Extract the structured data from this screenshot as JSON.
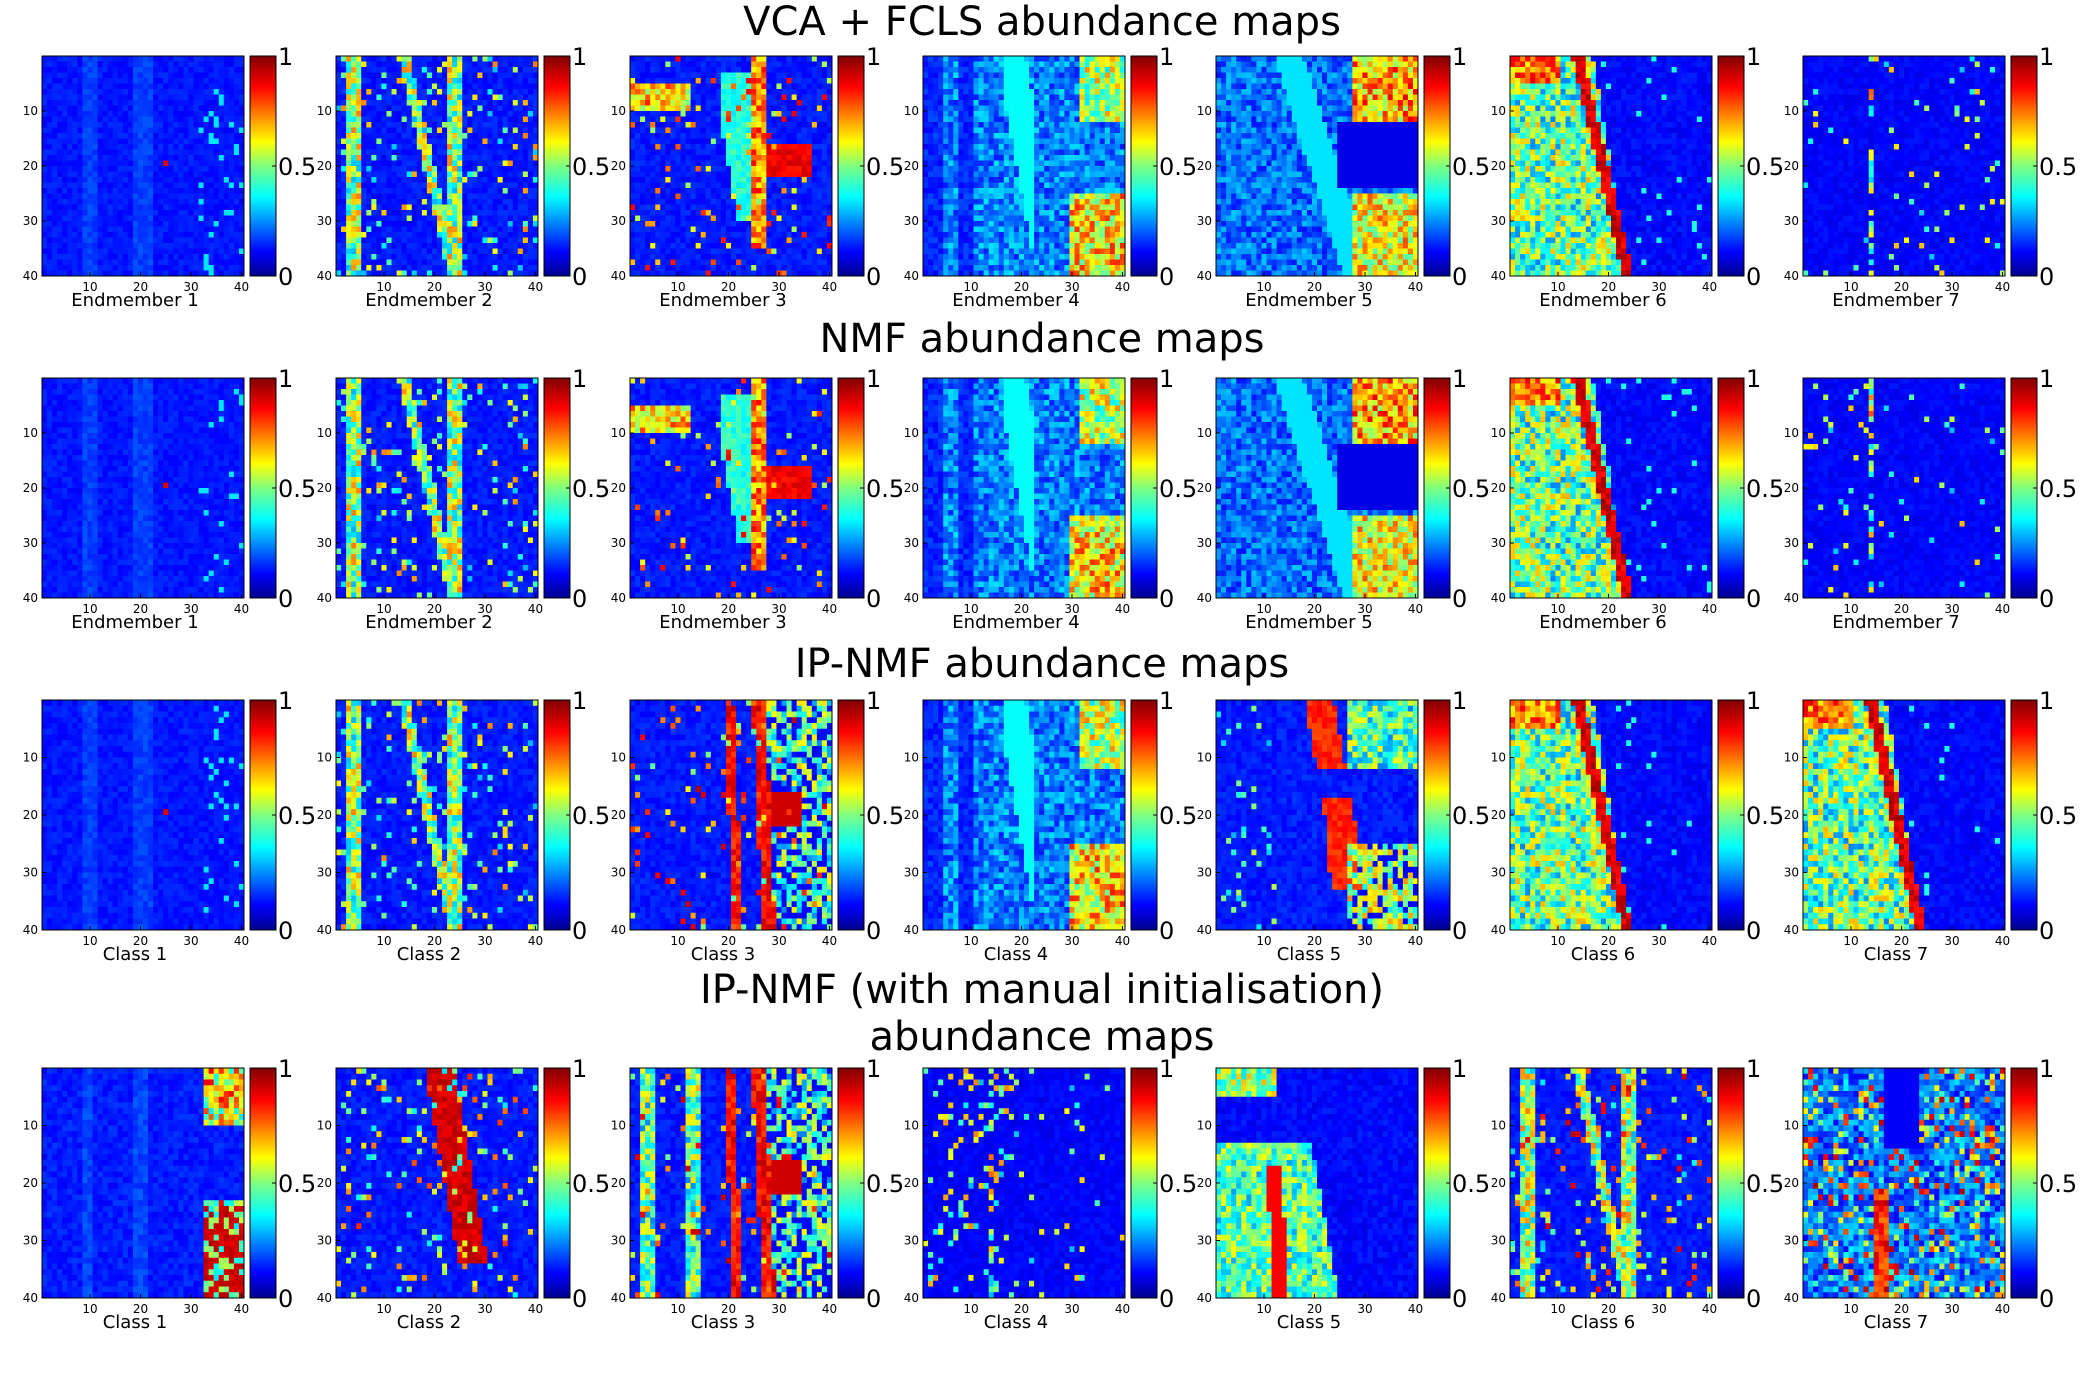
{
  "chart_data": {
    "type": "heatmap",
    "grid_size": 40,
    "x_ticks": [
      "10",
      "20",
      "30",
      "40"
    ],
    "y_ticks": [
      "10",
      "20",
      "30",
      "40"
    ],
    "colorbar_ticks": [
      "1",
      "0.5",
      "0"
    ],
    "colormap": "jet",
    "colorbar_range": [
      0,
      1
    ],
    "rows": [
      {
        "title_lines": [
          "VCA + FCLS abundance maps"
        ],
        "panels": [
          {
            "label": "Endmember 1",
            "pattern": "faint",
            "seed": 11
          },
          {
            "label": "Endmember 2",
            "pattern": "stripes",
            "seed": 12
          },
          {
            "label": "Endmember 3",
            "pattern": "hotblob",
            "seed": 13
          },
          {
            "label": "Endmember 4",
            "pattern": "veg",
            "seed": 14
          },
          {
            "label": "Endmember 5",
            "pattern": "veg2",
            "seed": 15
          },
          {
            "label": "Endmember 6",
            "pattern": "leftfield",
            "seed": 16
          },
          {
            "label": "Endmember 7",
            "pattern": "sparse",
            "seed": 17
          }
        ]
      },
      {
        "title_lines": [
          "NMF abundance maps"
        ],
        "panels": [
          {
            "label": "Endmember 1",
            "pattern": "faint",
            "seed": 21
          },
          {
            "label": "Endmember 2",
            "pattern": "stripes",
            "seed": 22
          },
          {
            "label": "Endmember 3",
            "pattern": "hotblob",
            "seed": 23
          },
          {
            "label": "Endmember 4",
            "pattern": "veg",
            "seed": 24
          },
          {
            "label": "Endmember 5",
            "pattern": "veg2",
            "seed": 25
          },
          {
            "label": "Endmember 6",
            "pattern": "leftfield",
            "seed": 26
          },
          {
            "label": "Endmember 7",
            "pattern": "sparse",
            "seed": 27
          }
        ]
      },
      {
        "title_lines": [
          "IP-NMF abundance maps"
        ],
        "panels": [
          {
            "label": "Class 1",
            "pattern": "faint",
            "seed": 31
          },
          {
            "label": "Class 2",
            "pattern": "stripes",
            "seed": 32
          },
          {
            "label": "Class 3",
            "pattern": "hotstripes",
            "seed": 33
          },
          {
            "label": "Class 4",
            "pattern": "veg",
            "seed": 34
          },
          {
            "label": "Class 5",
            "pattern": "orangeband",
            "seed": 35
          },
          {
            "label": "Class 6",
            "pattern": "leftfield",
            "seed": 36
          },
          {
            "label": "Class 7",
            "pattern": "leftfield2",
            "seed": 37
          }
        ]
      },
      {
        "title_lines": [
          "IP-NMF (with manual initialisation)",
          "abundance maps"
        ],
        "panels": [
          {
            "label": "Class 1",
            "pattern": "rightblock",
            "seed": 41
          },
          {
            "label": "Class 2",
            "pattern": "roadred",
            "seed": 42
          },
          {
            "label": "Class 3",
            "pattern": "hotstripes2",
            "seed": 43
          },
          {
            "label": "Class 4",
            "pattern": "sparse2",
            "seed": 44
          },
          {
            "label": "Class 5",
            "pattern": "leftred",
            "seed": 45
          },
          {
            "label": "Class 6",
            "pattern": "stripes2",
            "seed": 46
          },
          {
            "label": "Class 7",
            "pattern": "noisy",
            "seed": 47
          }
        ]
      }
    ]
  }
}
